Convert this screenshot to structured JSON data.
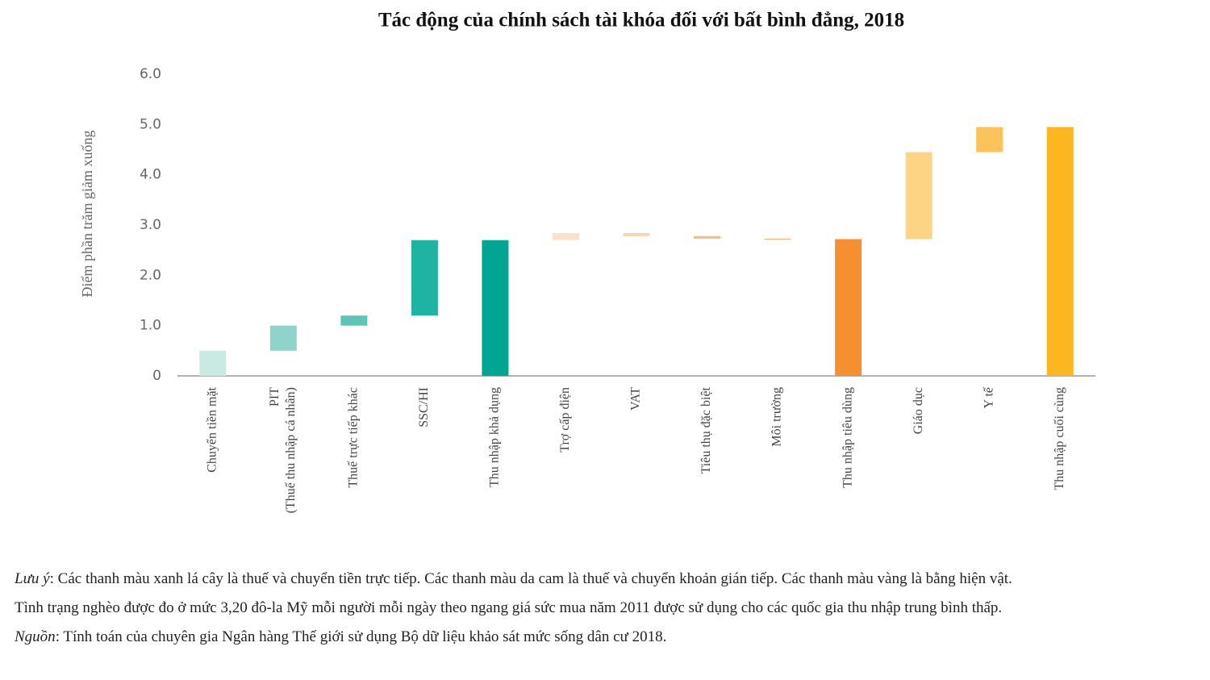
{
  "chart_data": {
    "type": "waterfall",
    "title": "Tác động của chính sách tài khóa đối với bất bình đẳng, 2018",
    "y_label": "Điểm phần trăm giảm xuống",
    "categories": [
      "Chuyển tiền mặt",
      [
        "PIT",
        "(Thuế thu nhập cá nhân)"
      ],
      "Thuế trực tiếp khác",
      "SSC/HI",
      "Thu nhập khả dụng",
      "Trợ cấp điện",
      "VAT",
      "Tiêu thụ đặc biệt",
      "Môi trường",
      "Thu nhập tiêu dùng",
      "Giáo dục",
      "Y tế",
      "Thu nhập cuối cùng"
    ],
    "values": [
      0.5,
      0.5,
      0.2,
      1.5,
      2.7,
      0.14,
      -0.06,
      -0.05,
      -0.01,
      2.72,
      1.73,
      0.5,
      4.95
    ],
    "is_total": [
      false,
      false,
      false,
      false,
      true,
      false,
      false,
      false,
      false,
      true,
      false,
      false,
      true
    ],
    "colors": [
      "#c9e9e3",
      "#8fd4cb",
      "#5cc5b8",
      "#1eb3a2",
      "#00a693",
      "#fde1c6",
      "#fcd2ad",
      "#f9b97f",
      "#f7a55c",
      "#f68f30",
      "#fdd483",
      "#fcc35b",
      "#fcb620"
    ],
    "ylim": [
      0,
      6
    ],
    "yticks": [
      0,
      {
        "value": 1,
        "label": "1.0"
      },
      {
        "value": 2,
        "label": "2.0"
      },
      {
        "value": 3,
        "label": "3.0"
      },
      {
        "value": 4,
        "label": "4.0"
      },
      {
        "value": 5,
        "label": "5.0"
      },
      {
        "value": 6,
        "label": "6.0"
      }
    ],
    "grid": false
  },
  "notes": [
    {
      "lead": "Lưu ý",
      "text": ": Các thanh màu xanh lá cây là thuế và chuyển tiền trực tiếp. Các thanh màu da cam là thuế và chuyển khoản gián tiếp. Các thanh màu vàng là bằng hiện vật."
    },
    {
      "text": "Tình trạng nghèo được đo ở mức 3,20 đô-la Mỹ mỗi người mỗi ngày theo ngang giá sức mua năm 2011 được sử dụng cho các quốc gia thu nhập trung bình thấp."
    },
    {
      "lead": "Nguồn",
      "text": ": Tính toán của chuyên gia Ngân hàng Thế giới sử dụng Bộ dữ liệu khảo sát mức sống dân cư 2018."
    }
  ]
}
